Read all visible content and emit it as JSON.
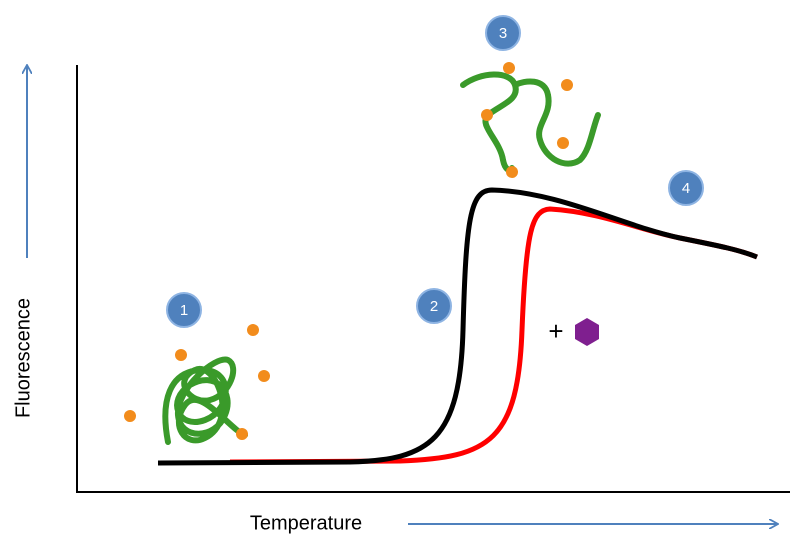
{
  "axes": {
    "y_label": "Fluorescence",
    "x_label": "Temperature"
  },
  "markers": [
    {
      "label": "1"
    },
    {
      "label": "2"
    },
    {
      "label": "3"
    },
    {
      "label": "4"
    }
  ],
  "ligand_annotation": "+"
}
